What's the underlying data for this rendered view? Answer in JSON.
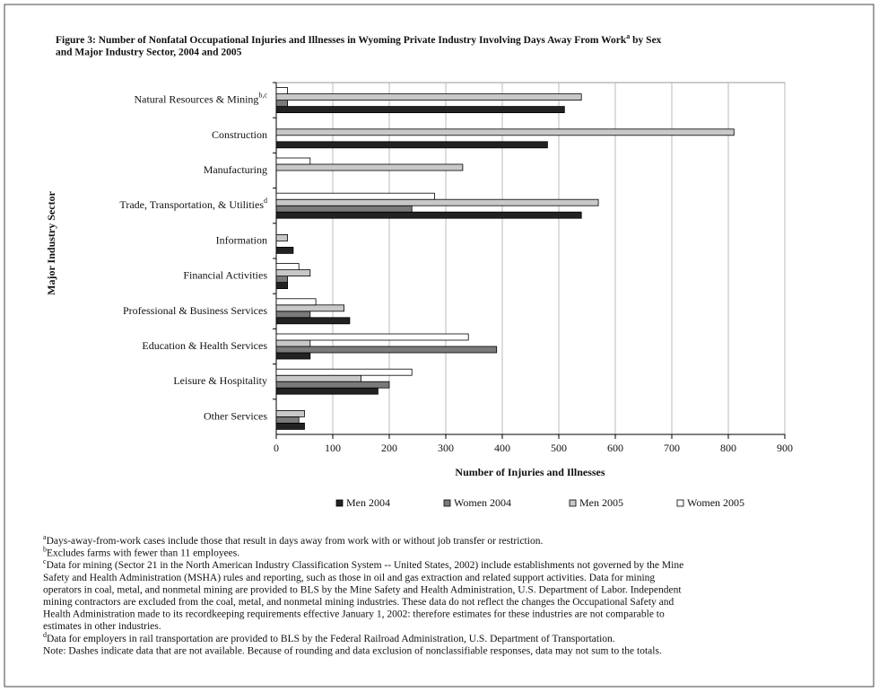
{
  "chart_data": {
    "type": "bar",
    "orientation": "horizontal",
    "title": {
      "line1": "Figure 3: Number of Nonfatal Occupational Injuries and Illnesses in Wyoming Private Industry Involving Days Away From Work",
      "line1_sup": "a",
      "line1_end": " by Sex",
      "line2": "and Major Industry Sector, 2004 and 2005"
    },
    "categories": [
      "Natural Resources & Mining",
      "Construction",
      "Manufacturing",
      "Trade, Transportation, & Utilities",
      "Information",
      "Financial Activities",
      "Professional & Business Services",
      "Education & Health Services",
      "Leisure & Hospitality",
      "Other Services"
    ],
    "category_superscripts": [
      "b,c",
      null,
      null,
      "d",
      null,
      null,
      null,
      null,
      null,
      null
    ],
    "series": [
      {
        "name": "Men 2004",
        "color": "#222222",
        "values": [
          510,
          480,
          null,
          540,
          30,
          20,
          130,
          60,
          180,
          50
        ]
      },
      {
        "name": "Women 2004",
        "color": "#7a7a7a",
        "values": [
          20,
          null,
          null,
          240,
          null,
          20,
          60,
          390,
          200,
          40
        ]
      },
      {
        "name": "Men 2005",
        "color": "#c8c8c8",
        "values": [
          540,
          810,
          330,
          570,
          20,
          60,
          120,
          60,
          150,
          50
        ]
      },
      {
        "name": "Women 2005",
        "color": "#ffffff",
        "values": [
          20,
          null,
          60,
          280,
          null,
          40,
          70,
          340,
          240,
          null
        ]
      }
    ],
    "xlabel": "Number of Injuries and Illnesses",
    "ylabel": "Major Industry Sector",
    "xlim": [
      0,
      900
    ],
    "xticks": [
      0,
      100,
      200,
      300,
      400,
      500,
      600,
      700,
      800,
      900
    ],
    "grid": true,
    "legend": "bottom",
    "footnotes": [
      {
        "mark": "a",
        "lines": [
          "Days-away-from-work cases include those that result in days away from work with or without job transfer or restriction."
        ]
      },
      {
        "mark": "b",
        "lines": [
          "Excludes farms with fewer than 11 employees."
        ]
      },
      {
        "mark": "c",
        "lines": [
          "Data for mining (Sector 21 in the North American Industry Classification System -- United States, 2002) include establishments not governed by the Mine",
          "Safety and Health Administration (MSHA) rules and reporting, such as those in oil and gas extraction and related support activities. Data for mining",
          "operators in coal, metal, and nonmetal mining are provided to BLS by the Mine Safety and Health Administration, U.S. Department of Labor. Independent",
          "mining contractors are excluded from the coal, metal, and nonmetal mining industries. These data do not reflect the changes the Occupational Safety and",
          "Health Administration made to its recordkeeping requirements effective January 1, 2002: therefore estimates for these industries are not comparable to",
          "estimates in other industries."
        ]
      },
      {
        "mark": "d",
        "lines": [
          "Data for employers in rail transportation are provided to BLS by the Federal Railroad Administration, U.S. Department of Transportation."
        ]
      },
      {
        "mark": null,
        "lines": [
          "Note: Dashes indicate data that are not available. Because of rounding and data exclusion of nonclassifiable responses, data may not sum to the totals."
        ]
      }
    ]
  }
}
